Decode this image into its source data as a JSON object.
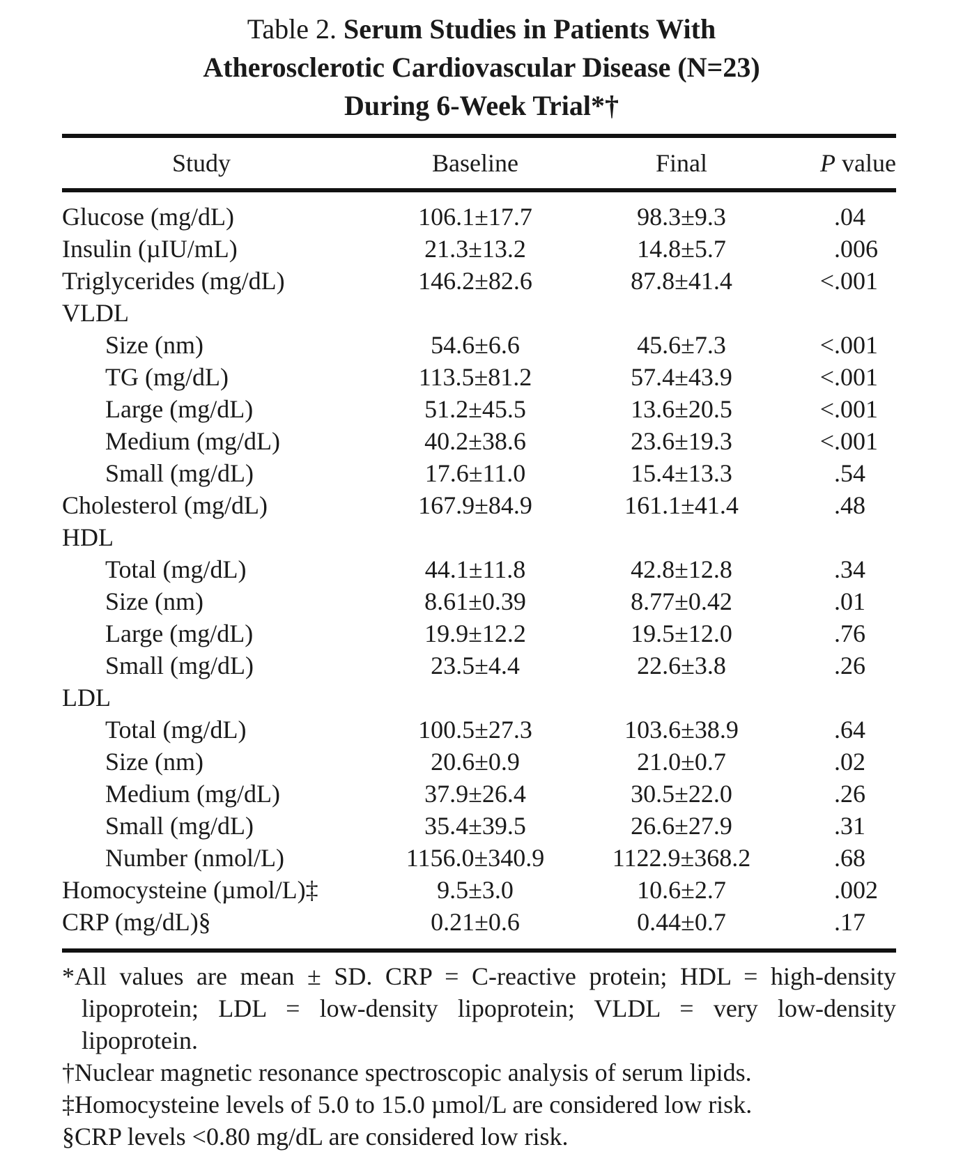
{
  "title": {
    "prefix": "Table 2.",
    "line1": "Serum Studies in Patients With",
    "line2": "Atherosclerotic Cardiovascular Disease (N=23)",
    "line3": "During 6-Week Trial*†"
  },
  "columns": {
    "study": "Study",
    "baseline": "Baseline",
    "final": "Final",
    "p_italic": "P",
    "p_rest": " value"
  },
  "rows": [
    {
      "label": "Glucose (mg/dL)",
      "indent": false,
      "baseline": "106.1±17.7",
      "final": "98.3±9.3",
      "p_pre": "",
      "p": ".04"
    },
    {
      "label": "Insulin (µIU/mL)",
      "indent": false,
      "baseline": "21.3±13.2",
      "final": "14.8±5.7",
      "p_pre": "",
      "p": ".006"
    },
    {
      "label": "Triglycerides (mg/dL)",
      "indent": false,
      "baseline": "146.2±82.6",
      "final": "87.8±41.4",
      "p_pre": "<",
      "p": ".001"
    },
    {
      "label": "VLDL",
      "indent": false,
      "baseline": "",
      "final": "",
      "p_pre": "",
      "p": ""
    },
    {
      "label": "Size (nm)",
      "indent": true,
      "baseline": "54.6±6.6",
      "final": "45.6±7.3",
      "p_pre": "<",
      "p": ".001"
    },
    {
      "label": "TG (mg/dL)",
      "indent": true,
      "baseline": "113.5±81.2",
      "final": "57.4±43.9",
      "p_pre": "<",
      "p": ".001"
    },
    {
      "label": "Large (mg/dL)",
      "indent": true,
      "baseline": "51.2±45.5",
      "final": "13.6±20.5",
      "p_pre": "<",
      "p": ".001"
    },
    {
      "label": "Medium (mg/dL)",
      "indent": true,
      "baseline": "40.2±38.6",
      "final": "23.6±19.3",
      "p_pre": "<",
      "p": ".001"
    },
    {
      "label": "Small (mg/dL)",
      "indent": true,
      "baseline": "17.6±11.0",
      "final": "15.4±13.3",
      "p_pre": "",
      "p": ".54"
    },
    {
      "label": "Cholesterol (mg/dL)",
      "indent": false,
      "baseline": "167.9±84.9",
      "final": "161.1±41.4",
      "p_pre": "",
      "p": ".48"
    },
    {
      "label": "HDL",
      "indent": false,
      "baseline": "",
      "final": "",
      "p_pre": "",
      "p": ""
    },
    {
      "label": "Total (mg/dL)",
      "indent": true,
      "baseline": "44.1±11.8",
      "final": "42.8±12.8",
      "p_pre": "",
      "p": ".34"
    },
    {
      "label": "Size (nm)",
      "indent": true,
      "baseline": "8.61±0.39",
      "final": "8.77±0.42",
      "p_pre": "",
      "p": ".01"
    },
    {
      "label": "Large (mg/dL)",
      "indent": true,
      "baseline": "19.9±12.2",
      "final": "19.5±12.0",
      "p_pre": "",
      "p": ".76"
    },
    {
      "label": "Small (mg/dL)",
      "indent": true,
      "baseline": "23.5±4.4",
      "final": "22.6±3.8",
      "p_pre": "",
      "p": ".26"
    },
    {
      "label": "LDL",
      "indent": false,
      "baseline": "",
      "final": "",
      "p_pre": "",
      "p": ""
    },
    {
      "label": "Total (mg/dL)",
      "indent": true,
      "baseline": "100.5±27.3",
      "final": "103.6±38.9",
      "p_pre": "",
      "p": ".64"
    },
    {
      "label": "Size (nm)",
      "indent": true,
      "baseline": "20.6±0.9",
      "final": "21.0±0.7",
      "p_pre": "",
      "p": ".02"
    },
    {
      "label": "Medium (mg/dL)",
      "indent": true,
      "baseline": "37.9±26.4",
      "final": "30.5±22.0",
      "p_pre": "",
      "p": ".26"
    },
    {
      "label": "Small (mg/dL)",
      "indent": true,
      "baseline": "35.4±39.5",
      "final": "26.6±27.9",
      "p_pre": "",
      "p": ".31"
    },
    {
      "label": "Number (nmol/L)",
      "indent": true,
      "baseline": "1156.0±340.9",
      "final": "1122.9±368.2",
      "p_pre": "",
      "p": ".68"
    },
    {
      "label": "Homocysteine (µmol/L)‡",
      "indent": false,
      "baseline": "9.5±3.0",
      "final": "10.6±2.7",
      "p_pre": "",
      "p": ".002"
    },
    {
      "label": "CRP (mg/dL)§",
      "indent": false,
      "baseline": "0.21±0.6",
      "final": "0.44±0.7",
      "p_pre": "",
      "p": ".17"
    }
  ],
  "footnotes": [
    "*All values are mean ± SD. CRP = C-reactive protein; HDL = high-density lipoprotein; LDL = low-density lipoprotein; VLDL = very low-density lipoprotein.",
    "†Nuclear magnetic resonance spectroscopic analysis of serum lipids.",
    "‡Homocysteine levels of 5.0 to 15.0 µmol/L are considered low risk.",
    "§CRP levels <0.80 mg/dL are considered low risk."
  ]
}
